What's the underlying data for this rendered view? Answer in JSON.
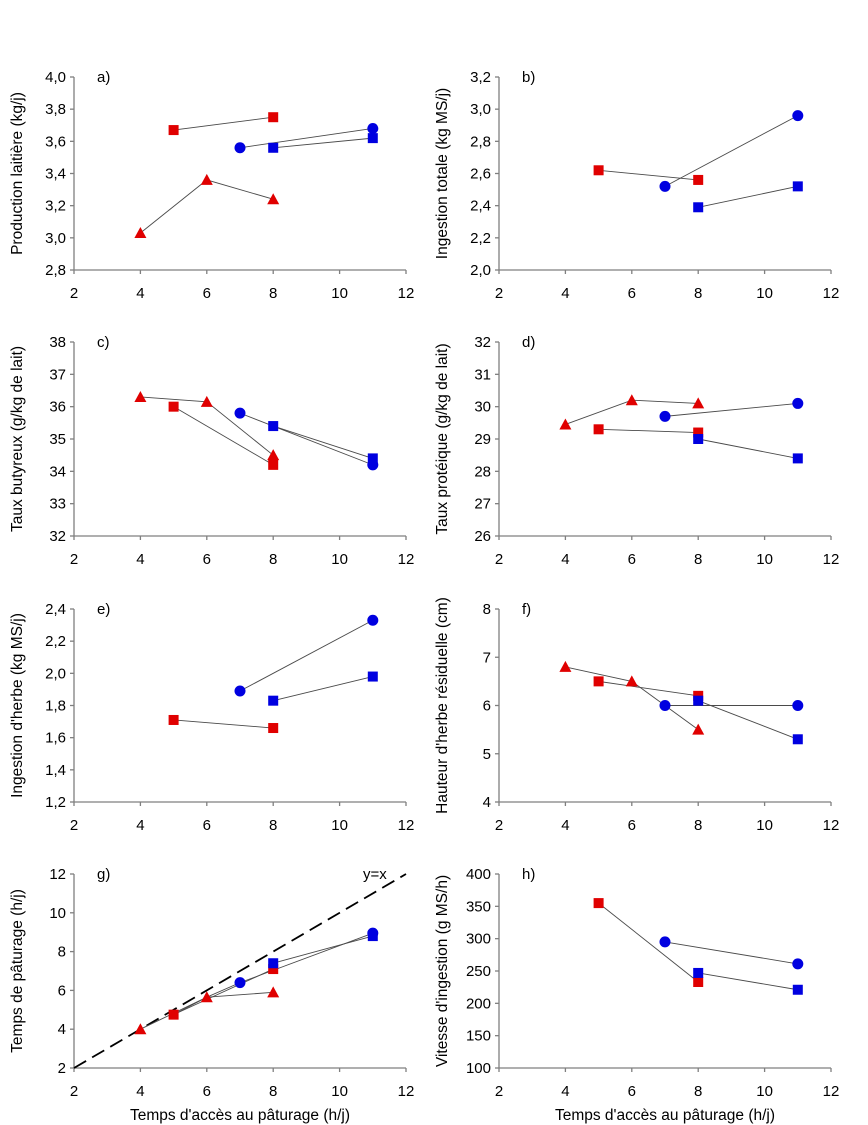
{
  "colors": {
    "red": "#e00000",
    "blue": "#0000e0",
    "line": "#4a4a4a",
    "axis": "#7f7f7f"
  },
  "chart_data": [
    {
      "type": "scatter",
      "panel": "a)",
      "ylabel": "Production laitière (kg/j)",
      "xlabel": "",
      "xlim": [
        2,
        12
      ],
      "xticks": [
        "2",
        "4",
        "6",
        "8",
        "10",
        "12"
      ],
      "ylim": [
        2.8,
        4.0
      ],
      "yticks": [
        "2,8",
        "3,0",
        "3,2",
        "3,4",
        "3,6",
        "3,8",
        "4,0"
      ],
      "series": [
        {
          "name": "red-square",
          "color": "red",
          "marker": "square",
          "x": [
            5,
            8
          ],
          "y": [
            3.67,
            3.75
          ]
        },
        {
          "name": "blue-circle",
          "color": "blue",
          "marker": "circle",
          "x": [
            7,
            11
          ],
          "y": [
            3.56,
            3.68
          ]
        },
        {
          "name": "blue-square",
          "color": "blue",
          "marker": "square",
          "x": [
            8,
            11
          ],
          "y": [
            3.56,
            3.62
          ]
        },
        {
          "name": "red-triangle",
          "color": "red",
          "marker": "triangle",
          "x": [
            4,
            6,
            8
          ],
          "y": [
            3.03,
            3.36,
            3.24
          ]
        }
      ]
    },
    {
      "type": "scatter",
      "panel": "b)",
      "ylabel": "Ingestion totale (kg MS/j)",
      "xlabel": "",
      "xlim": [
        2,
        12
      ],
      "xticks": [
        "2",
        "4",
        "6",
        "8",
        "10",
        "12"
      ],
      "ylim": [
        2.0,
        3.2
      ],
      "yticks": [
        "2,0",
        "2,2",
        "2,4",
        "2,6",
        "2,8",
        "3,0",
        "3,2"
      ],
      "series": [
        {
          "name": "red-square",
          "color": "red",
          "marker": "square",
          "x": [
            5,
            8
          ],
          "y": [
            2.62,
            2.56
          ]
        },
        {
          "name": "blue-circle",
          "color": "blue",
          "marker": "circle",
          "x": [
            7,
            11
          ],
          "y": [
            2.52,
            2.96
          ]
        },
        {
          "name": "blue-square",
          "color": "blue",
          "marker": "square",
          "x": [
            8,
            11
          ],
          "y": [
            2.39,
            2.52
          ]
        }
      ]
    },
    {
      "type": "scatter",
      "panel": "c)",
      "ylabel": "Taux butyreux (g/kg de lait)",
      "xlabel": "",
      "xlim": [
        2,
        12
      ],
      "xticks": [
        "2",
        "4",
        "6",
        "8",
        "10",
        "12"
      ],
      "ylim": [
        32,
        38
      ],
      "yticks": [
        "32",
        "33",
        "34",
        "35",
        "36",
        "37",
        "38"
      ],
      "series": [
        {
          "name": "red-triangle",
          "color": "red",
          "marker": "triangle",
          "x": [
            4,
            6,
            8
          ],
          "y": [
            36.3,
            36.15,
            34.5
          ]
        },
        {
          "name": "red-square",
          "color": "red",
          "marker": "square",
          "x": [
            5,
            8
          ],
          "y": [
            36.0,
            34.2
          ]
        },
        {
          "name": "blue-circle",
          "color": "blue",
          "marker": "circle",
          "x": [
            7,
            11
          ],
          "y": [
            35.8,
            34.2
          ]
        },
        {
          "name": "blue-square",
          "color": "blue",
          "marker": "square",
          "x": [
            8,
            11
          ],
          "y": [
            35.4,
            34.4
          ]
        }
      ]
    },
    {
      "type": "scatter",
      "panel": "d)",
      "ylabel": "Taux protéique (g/kg de lait)",
      "xlabel": "",
      "xlim": [
        2,
        12
      ],
      "xticks": [
        "2",
        "4",
        "6",
        "8",
        "10",
        "12"
      ],
      "ylim": [
        26,
        32
      ],
      "yticks": [
        "26",
        "27",
        "28",
        "29",
        "30",
        "31",
        "32"
      ],
      "series": [
        {
          "name": "red-triangle",
          "color": "red",
          "marker": "triangle",
          "x": [
            4,
            6,
            8
          ],
          "y": [
            29.45,
            30.2,
            30.1
          ]
        },
        {
          "name": "blue-circle",
          "color": "blue",
          "marker": "circle",
          "x": [
            7,
            11
          ],
          "y": [
            29.7,
            30.1
          ]
        },
        {
          "name": "red-square",
          "color": "red",
          "marker": "square",
          "x": [
            5,
            8
          ],
          "y": [
            29.3,
            29.2
          ]
        },
        {
          "name": "blue-square",
          "color": "blue",
          "marker": "square",
          "x": [
            8,
            11
          ],
          "y": [
            29.0,
            28.4
          ]
        }
      ]
    },
    {
      "type": "scatter",
      "panel": "e)",
      "ylabel": "Ingestion d'herbe (kg MS/j)",
      "xlabel": "",
      "xlim": [
        2,
        12
      ],
      "xticks": [
        "2",
        "4",
        "6",
        "8",
        "10",
        "12"
      ],
      "ylim": [
        1.2,
        2.4
      ],
      "yticks": [
        "1,2",
        "1,4",
        "1,6",
        "1,8",
        "2,0",
        "2,2",
        "2,4"
      ],
      "series": [
        {
          "name": "blue-circle",
          "color": "blue",
          "marker": "circle",
          "x": [
            7,
            11
          ],
          "y": [
            1.89,
            2.33
          ]
        },
        {
          "name": "blue-square",
          "color": "blue",
          "marker": "square",
          "x": [
            8,
            11
          ],
          "y": [
            1.83,
            1.98
          ]
        },
        {
          "name": "red-square",
          "color": "red",
          "marker": "square",
          "x": [
            5,
            8
          ],
          "y": [
            1.71,
            1.66
          ]
        }
      ]
    },
    {
      "type": "scatter",
      "panel": "f)",
      "ylabel": "Hauteur d'herbe résiduelle (cm)",
      "xlabel": "",
      "xlim": [
        2,
        12
      ],
      "xticks": [
        "2",
        "4",
        "6",
        "8",
        "10",
        "12"
      ],
      "ylim": [
        4,
        8
      ],
      "yticks": [
        "4",
        "5",
        "6",
        "7",
        "8"
      ],
      "series": [
        {
          "name": "red-triangle",
          "color": "red",
          "marker": "triangle",
          "x": [
            4,
            6,
            8
          ],
          "y": [
            6.8,
            6.5,
            5.5
          ]
        },
        {
          "name": "red-square",
          "color": "red",
          "marker": "square",
          "x": [
            5,
            8
          ],
          "y": [
            6.5,
            6.2
          ]
        },
        {
          "name": "blue-circle",
          "color": "blue",
          "marker": "circle",
          "x": [
            7,
            11
          ],
          "y": [
            6.0,
            6.0
          ]
        },
        {
          "name": "blue-square",
          "color": "blue",
          "marker": "square",
          "x": [
            8,
            11
          ],
          "y": [
            6.1,
            5.3
          ]
        }
      ]
    },
    {
      "type": "scatter",
      "panel": "g)",
      "ylabel": "Temps de pâturage (h/j)",
      "xlabel": "Temps d'accès au pâturage (h/j)",
      "xlim": [
        2,
        12
      ],
      "xticks": [
        "2",
        "4",
        "6",
        "8",
        "10",
        "12"
      ],
      "ylim": [
        2,
        12
      ],
      "yticks": [
        "2",
        "4",
        "6",
        "8",
        "10",
        "12"
      ],
      "reference_line": {
        "label": "y=x",
        "x": [
          2,
          12
        ],
        "y": [
          2,
          12
        ],
        "style": "dashed"
      },
      "series": [
        {
          "name": "red-triangle",
          "color": "red",
          "marker": "triangle",
          "x": [
            4,
            6,
            8
          ],
          "y": [
            4.0,
            5.65,
            5.9
          ]
        },
        {
          "name": "red-square",
          "color": "red",
          "marker": "square",
          "x": [
            5,
            8
          ],
          "y": [
            4.75,
            7.1
          ]
        },
        {
          "name": "blue-circle",
          "color": "blue",
          "marker": "circle",
          "x": [
            7,
            11
          ],
          "y": [
            6.4,
            8.95
          ]
        },
        {
          "name": "blue-square",
          "color": "blue",
          "marker": "square",
          "x": [
            8,
            11
          ],
          "y": [
            7.4,
            8.8
          ]
        },
        {
          "name": "link-triangle-circle",
          "color": "none",
          "marker": "none",
          "x": [
            6,
            7
          ],
          "y": [
            5.65,
            6.4
          ]
        },
        {
          "name": "link-square-circle",
          "color": "none",
          "marker": "none",
          "x": [
            5,
            6
          ],
          "y": [
            4.75,
            5.65
          ]
        }
      ]
    },
    {
      "type": "scatter",
      "panel": "h)",
      "ylabel": "Vitesse d'ingestion (g MS/h)",
      "xlabel": "Temps d'accès au pâturage (h/j)",
      "xlim": [
        2,
        12
      ],
      "xticks": [
        "2",
        "4",
        "6",
        "8",
        "10",
        "12"
      ],
      "ylim": [
        100,
        400
      ],
      "yticks": [
        "100",
        "150",
        "200",
        "250",
        "300",
        "350",
        "400"
      ],
      "series": [
        {
          "name": "red-square",
          "color": "red",
          "marker": "square",
          "x": [
            5,
            8
          ],
          "y": [
            355,
            233
          ]
        },
        {
          "name": "blue-circle",
          "color": "blue",
          "marker": "circle",
          "x": [
            7,
            11
          ],
          "y": [
            295,
            261
          ]
        },
        {
          "name": "blue-square",
          "color": "blue",
          "marker": "square",
          "x": [
            8,
            11
          ],
          "y": [
            247,
            221
          ]
        }
      ]
    }
  ]
}
